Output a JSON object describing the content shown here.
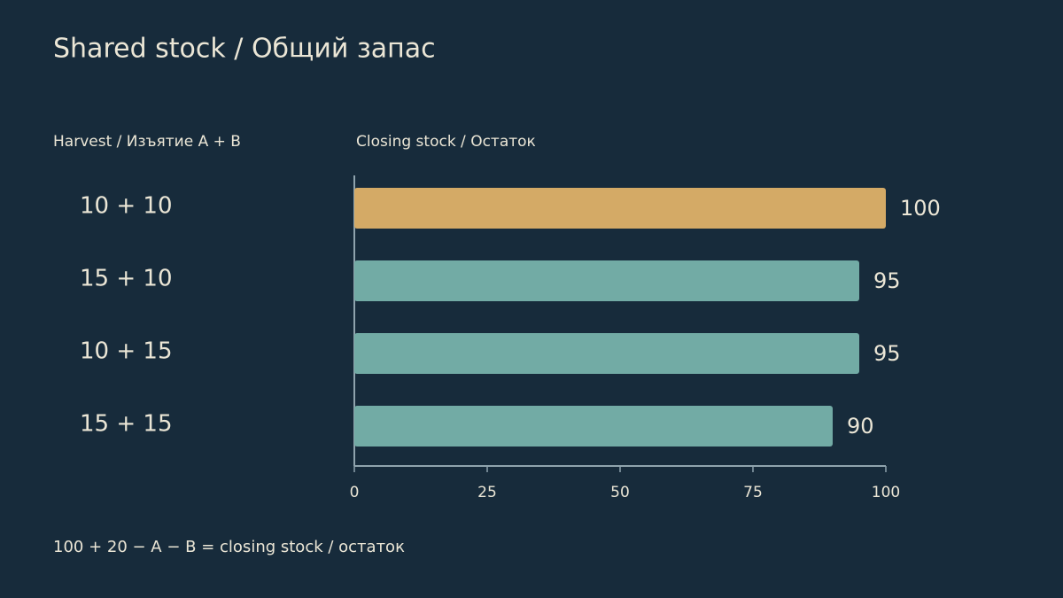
{
  "chart_data": {
    "type": "bar",
    "orientation": "horizontal",
    "title": "Shared stock / Общий запас",
    "category_header": "Harvest / Изъятие A + B",
    "value_header": "Closing stock / Остаток",
    "footnote": "100 + 20 − A − B = closing stock / остаток",
    "categories": [
      "10 + 10",
      "15 + 10",
      "10 + 15",
      "15 + 15"
    ],
    "values": [
      100,
      95,
      95,
      90
    ],
    "colors": [
      "#d4aa66",
      "#72aba5",
      "#72aba5",
      "#72aba5"
    ],
    "xlim": [
      0,
      100
    ],
    "xticks": [
      0,
      25,
      50,
      75,
      100
    ]
  }
}
